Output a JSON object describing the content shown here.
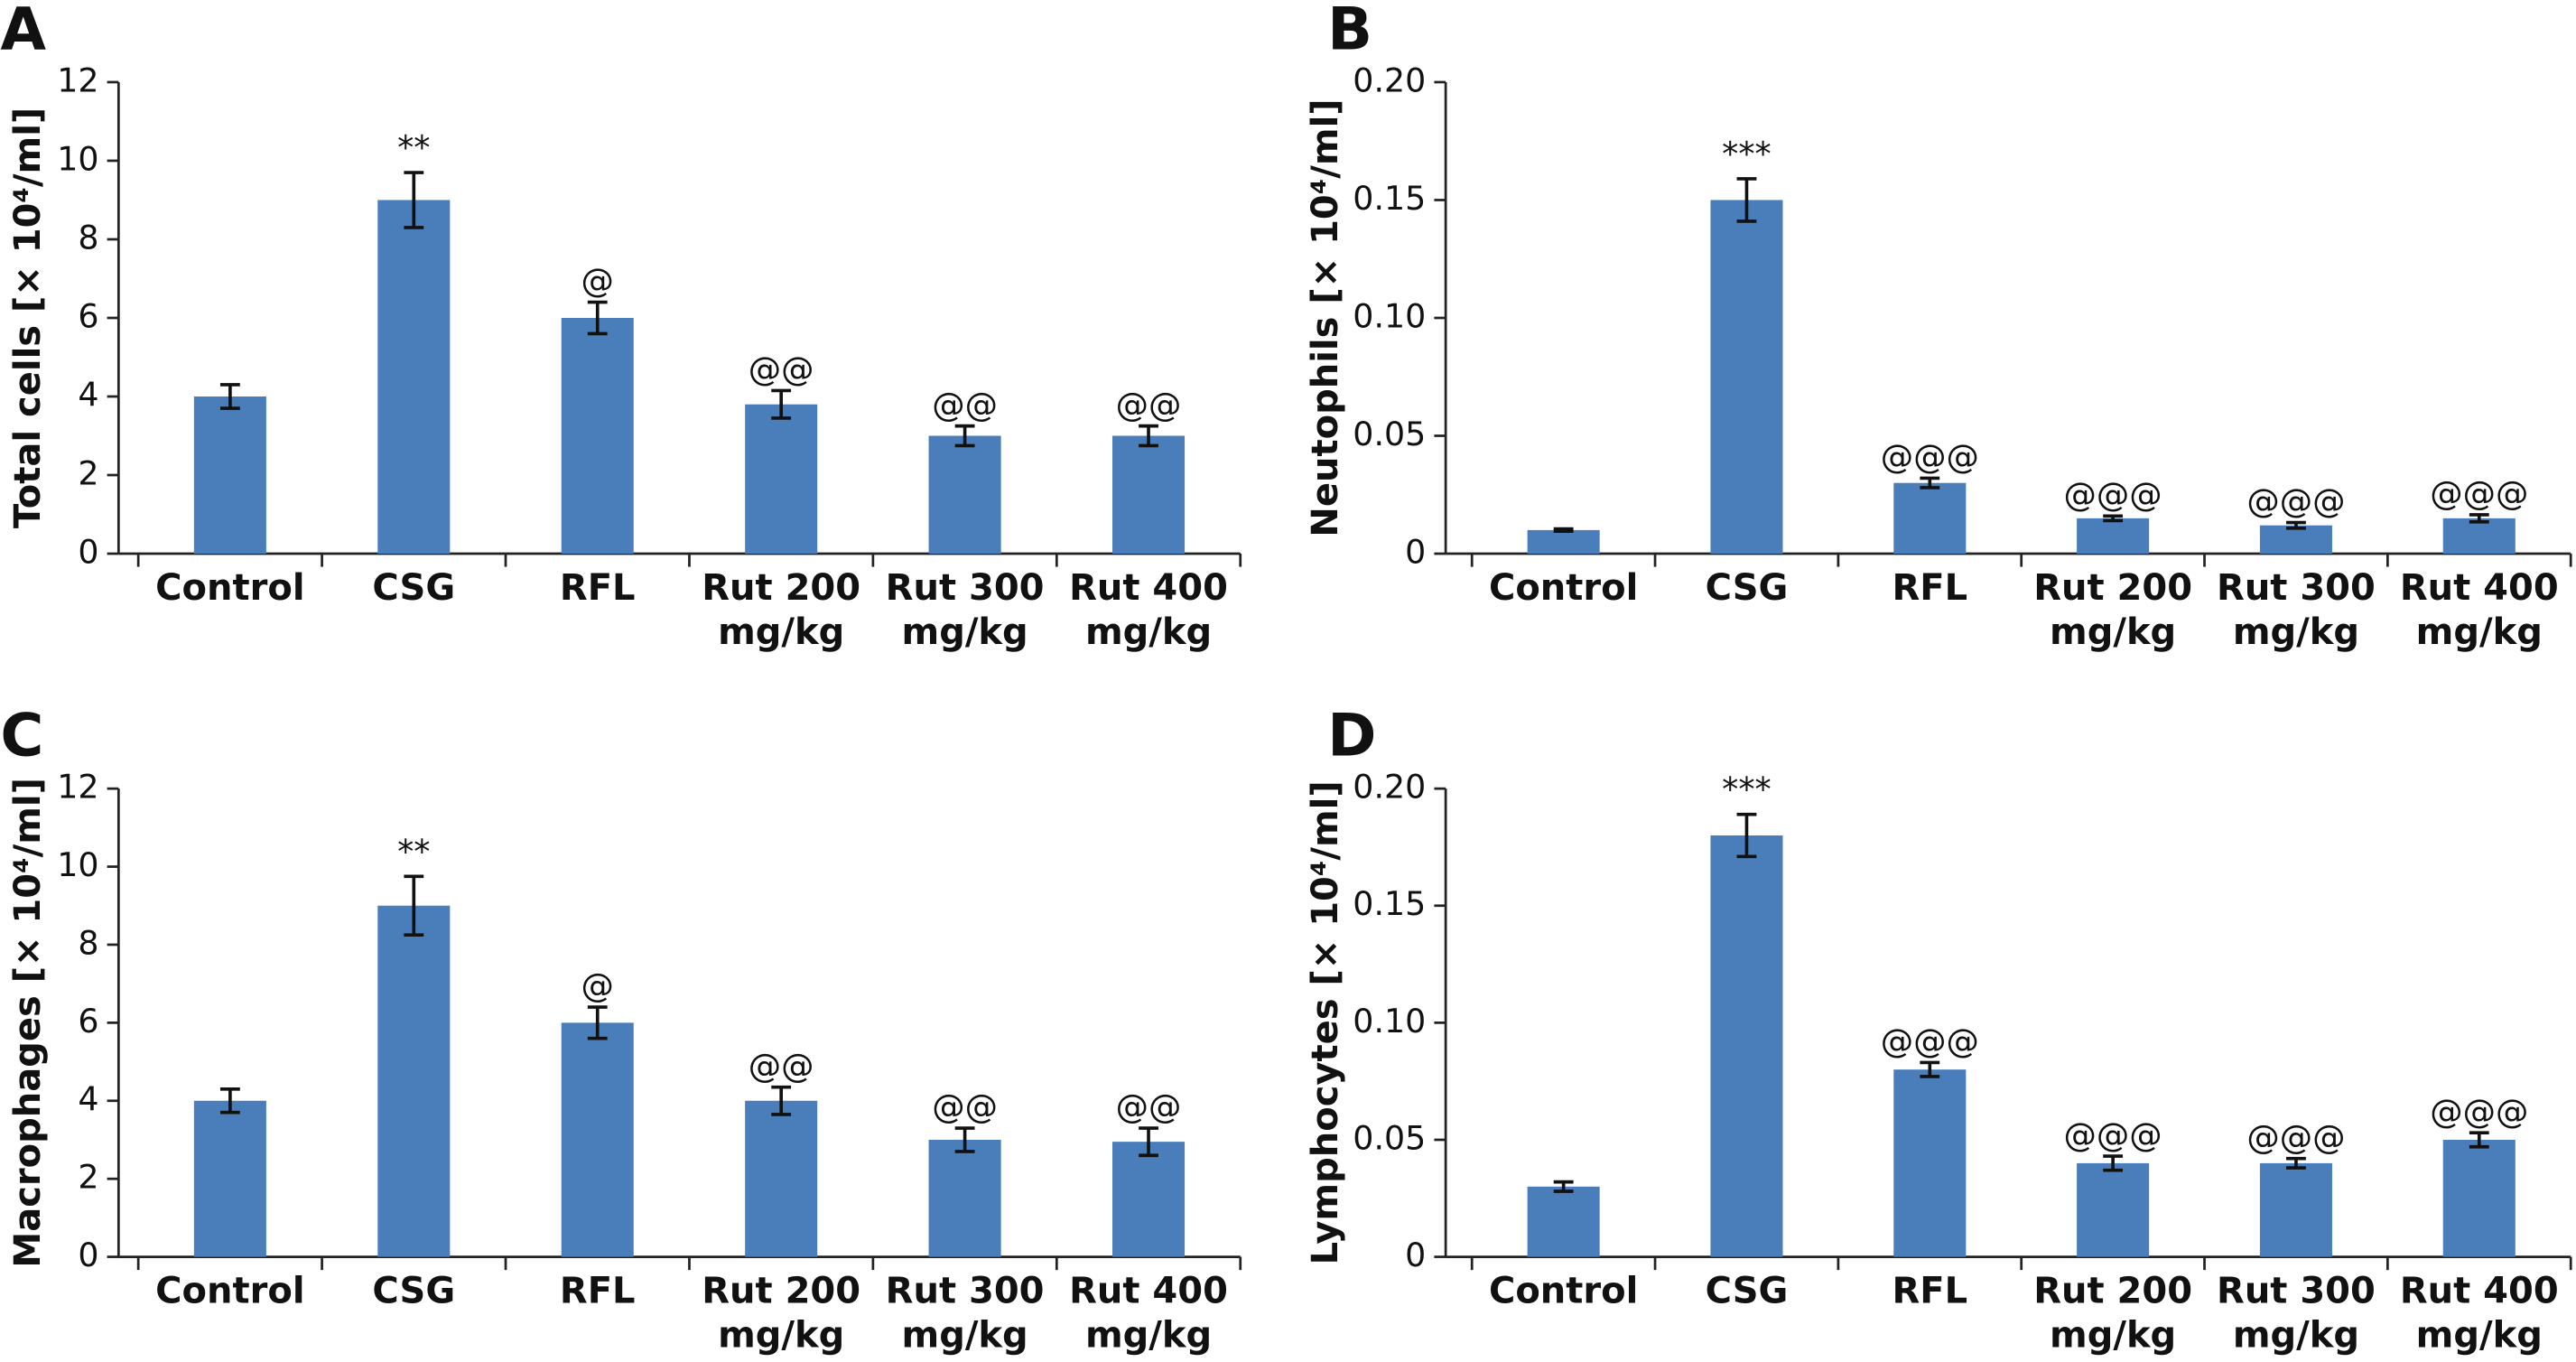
{
  "chart_data": [
    {
      "type": "bar",
      "panel": "A",
      "ylabel": "Total cells [× 10⁴/ml]",
      "color": "#4a7ebb",
      "categories": [
        "Control",
        "CSG",
        "RFL",
        [
          "Rut 200",
          "mg/kg"
        ],
        [
          "Rut 300",
          "mg/kg"
        ],
        [
          "Rut 400",
          "mg/kg"
        ]
      ],
      "values": [
        4,
        9,
        6,
        3.8,
        3,
        3
      ],
      "errors": [
        0.3,
        0.7,
        0.4,
        0.35,
        0.25,
        0.25
      ],
      "annotations": [
        null,
        "**",
        "@",
        "@@",
        "@@",
        "@@"
      ],
      "ylim": [
        0,
        12
      ],
      "yticks": [
        0,
        2,
        4,
        6,
        8,
        10,
        12
      ]
    },
    {
      "type": "bar",
      "panel": "B",
      "ylabel": "Neutophils [× 10⁴/ml]",
      "color": "#4a7ebb",
      "categories": [
        "Control",
        "CSG",
        "RFL",
        [
          "Rut 200",
          "mg/kg"
        ],
        [
          "Rut 300",
          "mg/kg"
        ],
        [
          "Rut 400",
          "mg/kg"
        ]
      ],
      "values": [
        0.01,
        0.15,
        0.03,
        0.015,
        0.012,
        0.015
      ],
      "errors": [
        0.0005,
        0.009,
        0.002,
        0.001,
        0.0012,
        0.0015
      ],
      "annotations": [
        null,
        "***",
        "@@@",
        "@@@",
        "@@@",
        "@@@"
      ],
      "ylim": [
        0,
        0.2
      ],
      "yticks": [
        0,
        0.05,
        {
          "value": 0.1,
          "label": "0.10"
        },
        0.15,
        {
          "value": 0.2,
          "label": "0.20"
        }
      ]
    },
    {
      "type": "bar",
      "panel": "C",
      "ylabel": "Macrophages [× 10⁴/ml]",
      "color": "#4a7ebb",
      "categories": [
        "Control",
        "CSG",
        "RFL",
        [
          "Rut 200",
          "mg/kg"
        ],
        [
          "Rut 300",
          "mg/kg"
        ],
        [
          "Rut 400",
          "mg/kg"
        ]
      ],
      "values": [
        4,
        9,
        6,
        4,
        3,
        2.95
      ],
      "errors": [
        0.3,
        0.75,
        0.4,
        0.35,
        0.3,
        0.35
      ],
      "annotations": [
        null,
        "**",
        "@",
        "@@",
        "@@",
        "@@"
      ],
      "ylim": [
        0,
        12
      ],
      "yticks": [
        0,
        2,
        4,
        6,
        8,
        10,
        12
      ]
    },
    {
      "type": "bar",
      "panel": "D",
      "ylabel": "Lymphocytes [× 10⁴/ml]",
      "color": "#4a7ebb",
      "categories": [
        "Control",
        "CSG",
        "RFL",
        [
          "Rut 200",
          "mg/kg"
        ],
        [
          "Rut 300",
          "mg/kg"
        ],
        [
          "Rut 400",
          "mg/kg"
        ]
      ],
      "values": [
        0.03,
        0.18,
        0.08,
        0.04,
        0.04,
        0.05
      ],
      "errors": [
        0.002,
        0.009,
        0.003,
        0.003,
        0.002,
        0.003
      ],
      "annotations": [
        null,
        "***",
        "@@@",
        "@@@",
        "@@@",
        "@@@"
      ],
      "ylim": [
        0,
        0.2
      ],
      "yticks": [
        0,
        0.05,
        {
          "value": 0.1,
          "label": "0.10"
        },
        0.15,
        {
          "value": 0.2,
          "label": "0.20"
        }
      ]
    }
  ]
}
